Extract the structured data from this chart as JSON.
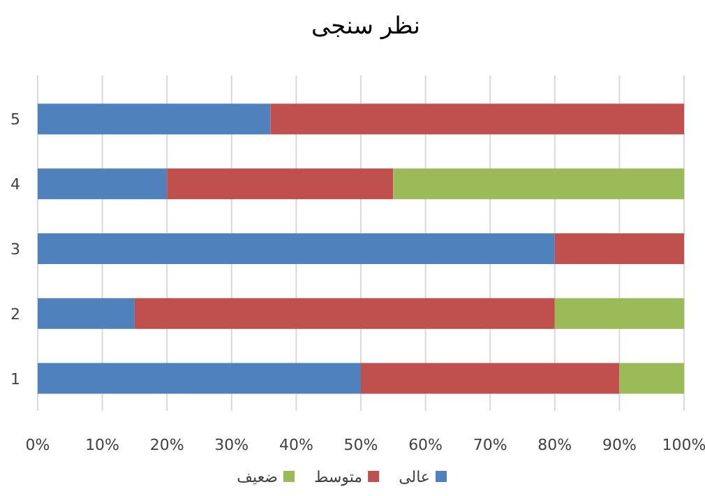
{
  "chart_data": {
    "type": "bar",
    "orientation": "horizontal",
    "stacked": true,
    "title": "نظر سنجی",
    "categories": [
      "5",
      "4",
      "3",
      "2",
      "1"
    ],
    "series": [
      {
        "name": "عالی",
        "color": "#4f81bd",
        "values": [
          36,
          20,
          80,
          15,
          50
        ]
      },
      {
        "name": "متوسط",
        "color": "#c0504d",
        "values": [
          64,
          35,
          20,
          65,
          40
        ]
      },
      {
        "name": "ضعیف",
        "color": "#9bbb59",
        "values": [
          0,
          45,
          0,
          20,
          10
        ]
      }
    ],
    "xlim": [
      0,
      100
    ],
    "xticks": [
      {
        "value": 0,
        "label": "0%"
      },
      {
        "value": 10,
        "label": "10%"
      },
      {
        "value": 20,
        "label": "20%"
      },
      {
        "value": 30,
        "label": "30%"
      },
      {
        "value": 40,
        "label": "40%"
      },
      {
        "value": 50,
        "label": "50%"
      },
      {
        "value": 60,
        "label": "60%"
      },
      {
        "value": 70,
        "label": "70%"
      },
      {
        "value": 80,
        "label": "80%"
      },
      {
        "value": 90,
        "label": "90%"
      },
      {
        "value": 100,
        "label": "100%"
      }
    ],
    "grid": "x",
    "legend": "bottom"
  }
}
